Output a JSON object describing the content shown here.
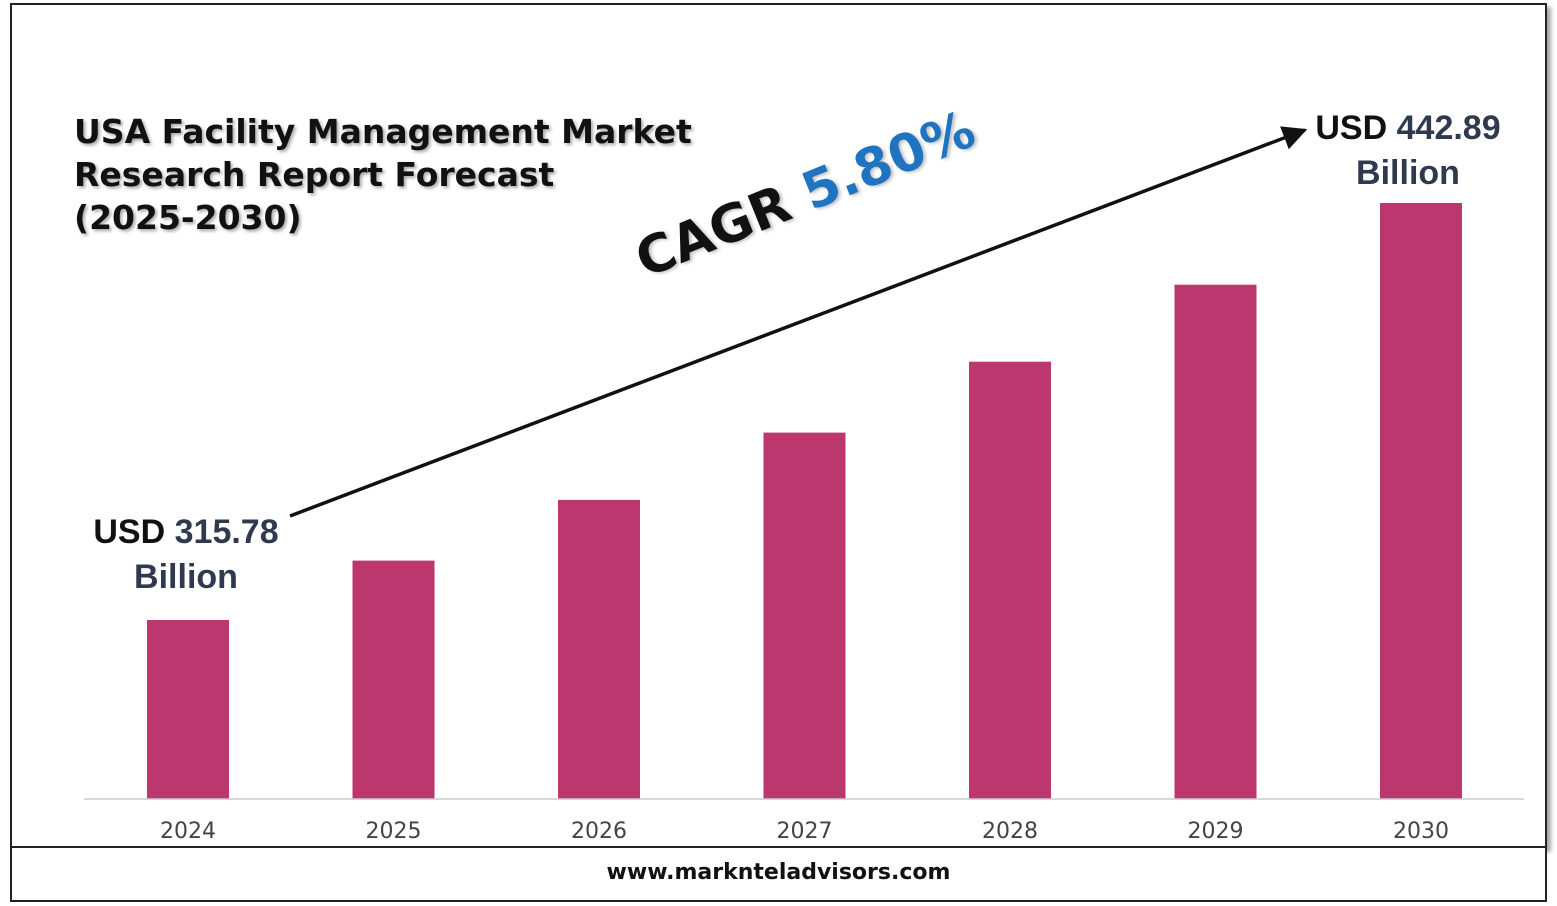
{
  "title": "USA Facility Management Market\nResearch Report Forecast\n(2025-2030)",
  "footer": "www.marknteladvisors.com",
  "cagr": {
    "label": "CAGR",
    "value": "5.80%"
  },
  "callouts": {
    "start": {
      "prefix": "USD",
      "value": "315.78",
      "unit": "Billion"
    },
    "end": {
      "prefix": "USD",
      "value": "442.89",
      "unit": "Billion"
    }
  },
  "colors": {
    "bar": "#bb376d",
    "axis": "#cccccc",
    "cagr_value": "#1f74c2",
    "callout_value": "#2f3a4e"
  },
  "chart_data": {
    "type": "bar",
    "categories": [
      "2024",
      "2025",
      "2026",
      "2027",
      "2028",
      "2029",
      "2030"
    ],
    "values": [
      315.78,
      333.9,
      352.4,
      372.9,
      394.5,
      418.0,
      442.89
    ],
    "title": "USA Facility Management Market Research Report Forecast (2025-2030)",
    "xlabel": "",
    "ylabel": "",
    "grid": false,
    "legend": "none",
    "annotations": [
      "USD 315.78 Billion",
      "USD 442.89 Billion",
      "CAGR 5.80%"
    ]
  }
}
